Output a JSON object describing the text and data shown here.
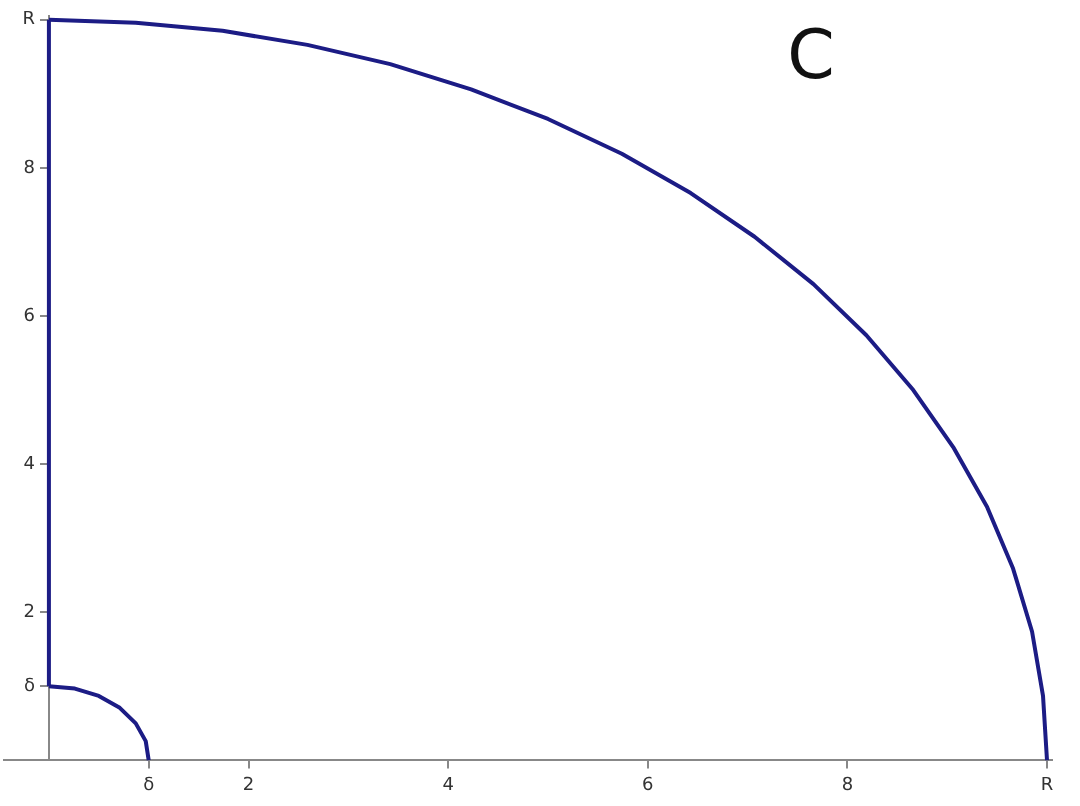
{
  "chart_data": {
    "type": "line",
    "xlim": [
      -0.45,
      10.05
    ],
    "ylim": [
      0,
      10.05
    ],
    "xticks": [
      {
        "value": 1,
        "label": "δ"
      },
      2,
      4,
      6,
      8,
      {
        "value": 10,
        "label": "R"
      }
    ],
    "yticks": [
      {
        "value": 1,
        "label": "δ"
      },
      2,
      4,
      6,
      8,
      {
        "value": 10,
        "label": "R"
      }
    ],
    "grid": false,
    "legend": false,
    "marker": "none",
    "line_style": "solid",
    "annotations": [
      "C"
    ],
    "series": [
      {
        "color": "#1c1c85",
        "x": [
          10,
          9.96,
          9.85,
          9.66,
          9.4,
          9.06,
          8.66,
          8.19,
          7.66,
          7.07,
          6.43,
          5.74,
          5,
          4.23,
          3.42,
          2.59,
          1.74,
          0.87,
          0
        ],
        "values": [
          0,
          0.87,
          1.74,
          2.59,
          3.42,
          4.23,
          5,
          5.74,
          6.43,
          7.07,
          7.66,
          8.19,
          8.66,
          9.06,
          9.4,
          9.66,
          9.85,
          9.96,
          10
        ]
      },
      {
        "color": "#1c1c85",
        "x": [
          0,
          0
        ],
        "values": [
          1,
          10
        ]
      },
      {
        "color": "#1c1c85",
        "x": [
          1,
          0.97,
          0.87,
          0.71,
          0.5,
          0.26,
          0
        ],
        "values": [
          0,
          0.26,
          0.5,
          0.71,
          0.87,
          0.97,
          1
        ]
      }
    ]
  }
}
